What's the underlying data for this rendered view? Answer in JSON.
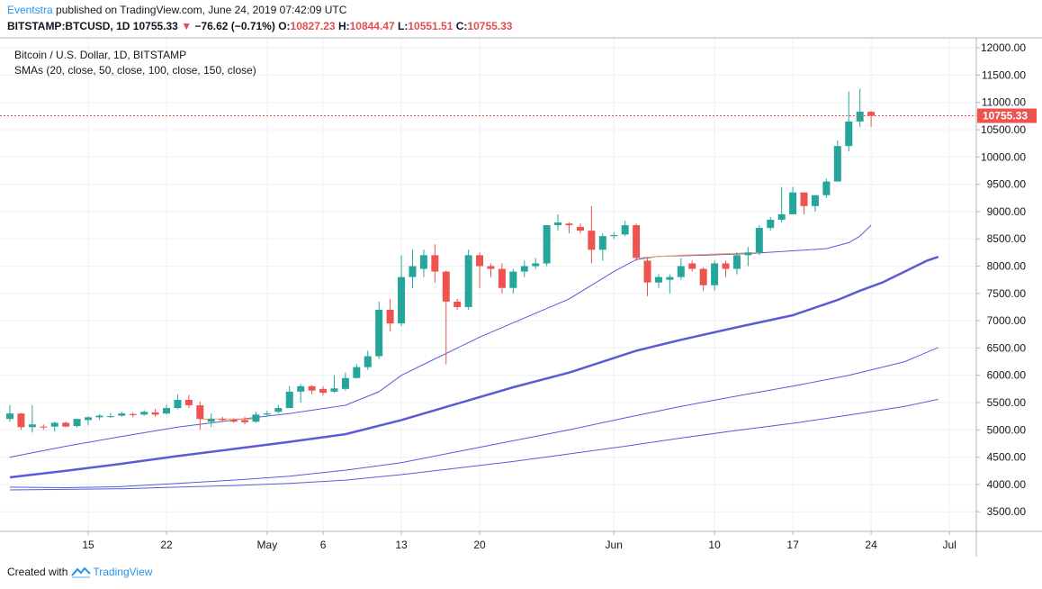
{
  "header": {
    "author": "Eventstra",
    "published_text": "published on TradingView.com, June 24, 2019 07:42:09 UTC",
    "symbol": "BITSTAMP:BTCUSD, 1D",
    "last": "10755.33",
    "change_arrow": "▼",
    "change": "−76.62 (−0.71%)",
    "o_label": "O:",
    "o_value": "10827.23",
    "h_label": "H:",
    "h_value": "10844.47",
    "l_label": "L:",
    "l_value": "10551.51",
    "c_label": "C:",
    "c_value": "10755.33"
  },
  "legend": {
    "title": "Bitcoin / U.S. Dollar, 1D, BITSTAMP",
    "indicators": "SMAs (20, close, 50, close, 100, close, 150, close)"
  },
  "footer": {
    "created_with": "Created with",
    "brand": "TradingView"
  },
  "colors": {
    "up": "#26a69a",
    "down": "#ef5350",
    "sma": "#5b5bd6",
    "sma_cross": "#f5a05a",
    "last_price_bg": "#ef5350",
    "grid": "#eef0f3"
  },
  "chart_data": {
    "type": "candlestick",
    "title": "Bitcoin / U.S. Dollar, 1D, BITSTAMP",
    "ylim": [
      3000,
      12100
    ],
    "y_ticks": [
      "12000.00",
      "11500.00",
      "11000.00",
      "10500.00",
      "10000.00",
      "9500.00",
      "9000.00",
      "8500.00",
      "8000.00",
      "7500.00",
      "7000.00",
      "6500.00",
      "6000.00",
      "5500.00",
      "5000.00",
      "4500.00",
      "4000.00",
      "3500.00"
    ],
    "x_tick_labels": [
      "15",
      "22",
      "May",
      "6",
      "13",
      "20",
      "Jun",
      "10",
      "17",
      "24",
      "Jul"
    ],
    "last_price_label": "10755.33",
    "grid": true,
    "candles": [
      {
        "date": "2019-04-08",
        "o": 5200,
        "h": 5450,
        "l": 5150,
        "c": 5300
      },
      {
        "date": "2019-04-09",
        "o": 5300,
        "h": 5310,
        "l": 5000,
        "c": 5050
      },
      {
        "date": "2019-04-10",
        "o": 5050,
        "h": 5450,
        "l": 4950,
        "c": 5100
      },
      {
        "date": "2019-04-11",
        "o": 5060,
        "h": 5100,
        "l": 5000,
        "c": 5050
      },
      {
        "date": "2019-04-12",
        "o": 5060,
        "h": 5150,
        "l": 4970,
        "c": 5130
      },
      {
        "date": "2019-04-13",
        "o": 5130,
        "h": 5150,
        "l": 5050,
        "c": 5060
      },
      {
        "date": "2019-04-14",
        "o": 5070,
        "h": 5200,
        "l": 5040,
        "c": 5200
      },
      {
        "date": "2019-04-15",
        "o": 5180,
        "h": 5250,
        "l": 5080,
        "c": 5230
      },
      {
        "date": "2019-04-16",
        "o": 5230,
        "h": 5290,
        "l": 5180,
        "c": 5260
      },
      {
        "date": "2019-04-17",
        "o": 5240,
        "h": 5310,
        "l": 5220,
        "c": 5250
      },
      {
        "date": "2019-04-18",
        "o": 5260,
        "h": 5330,
        "l": 5240,
        "c": 5300
      },
      {
        "date": "2019-04-19",
        "o": 5290,
        "h": 5320,
        "l": 5230,
        "c": 5270
      },
      {
        "date": "2019-04-20",
        "o": 5280,
        "h": 5360,
        "l": 5260,
        "c": 5330
      },
      {
        "date": "2019-04-21",
        "o": 5320,
        "h": 5380,
        "l": 5240,
        "c": 5280
      },
      {
        "date": "2019-04-22",
        "o": 5300,
        "h": 5460,
        "l": 5280,
        "c": 5400
      },
      {
        "date": "2019-04-23",
        "o": 5400,
        "h": 5650,
        "l": 5380,
        "c": 5550
      },
      {
        "date": "2019-04-24",
        "o": 5550,
        "h": 5640,
        "l": 5400,
        "c": 5450
      },
      {
        "date": "2019-04-25",
        "o": 5450,
        "h": 5520,
        "l": 5000,
        "c": 5200
      },
      {
        "date": "2019-04-26",
        "o": 5150,
        "h": 5300,
        "l": 5050,
        "c": 5200
      },
      {
        "date": "2019-04-27",
        "o": 5200,
        "h": 5240,
        "l": 5150,
        "c": 5180
      },
      {
        "date": "2019-04-28",
        "o": 5180,
        "h": 5210,
        "l": 5130,
        "c": 5150
      },
      {
        "date": "2019-04-29",
        "o": 5180,
        "h": 5240,
        "l": 5100,
        "c": 5140
      },
      {
        "date": "2019-04-30",
        "o": 5150,
        "h": 5330,
        "l": 5130,
        "c": 5280
      },
      {
        "date": "2019-05-01",
        "o": 5280,
        "h": 5350,
        "l": 5250,
        "c": 5300
      },
      {
        "date": "2019-05-02",
        "o": 5330,
        "h": 5460,
        "l": 5300,
        "c": 5400
      },
      {
        "date": "2019-05-03",
        "o": 5400,
        "h": 5800,
        "l": 5400,
        "c": 5700
      },
      {
        "date": "2019-05-04",
        "o": 5700,
        "h": 5840,
        "l": 5500,
        "c": 5800
      },
      {
        "date": "2019-05-05",
        "o": 5800,
        "h": 5820,
        "l": 5650,
        "c": 5720
      },
      {
        "date": "2019-05-06",
        "o": 5750,
        "h": 5800,
        "l": 5630,
        "c": 5680
      },
      {
        "date": "2019-05-07",
        "o": 5700,
        "h": 6000,
        "l": 5680,
        "c": 5760
      },
      {
        "date": "2019-05-08",
        "o": 5750,
        "h": 6050,
        "l": 5720,
        "c": 5950
      },
      {
        "date": "2019-05-09",
        "o": 5950,
        "h": 6200,
        "l": 5940,
        "c": 6150
      },
      {
        "date": "2019-05-10",
        "o": 6150,
        "h": 6450,
        "l": 6100,
        "c": 6350
      },
      {
        "date": "2019-05-11",
        "o": 6350,
        "h": 7350,
        "l": 6300,
        "c": 7200
      },
      {
        "date": "2019-05-12",
        "o": 7200,
        "h": 7400,
        "l": 6800,
        "c": 6950
      },
      {
        "date": "2019-05-13",
        "o": 6950,
        "h": 8200,
        "l": 6900,
        "c": 7800
      },
      {
        "date": "2019-05-14",
        "o": 7800,
        "h": 8300,
        "l": 7600,
        "c": 8000
      },
      {
        "date": "2019-05-15",
        "o": 7950,
        "h": 8300,
        "l": 7800,
        "c": 8200
      },
      {
        "date": "2019-05-16",
        "o": 8200,
        "h": 8400,
        "l": 7700,
        "c": 7900
      },
      {
        "date": "2019-05-17",
        "o": 7900,
        "h": 7920,
        "l": 6200,
        "c": 7350
      },
      {
        "date": "2019-05-18",
        "o": 7350,
        "h": 7400,
        "l": 7200,
        "c": 7250
      },
      {
        "date": "2019-05-19",
        "o": 7250,
        "h": 8300,
        "l": 7200,
        "c": 8200
      },
      {
        "date": "2019-05-20",
        "o": 8200,
        "h": 8250,
        "l": 7600,
        "c": 8000
      },
      {
        "date": "2019-05-21",
        "o": 8000,
        "h": 8050,
        "l": 7800,
        "c": 7950
      },
      {
        "date": "2019-05-22",
        "o": 7950,
        "h": 8050,
        "l": 7500,
        "c": 7600
      },
      {
        "date": "2019-05-23",
        "o": 7600,
        "h": 7950,
        "l": 7500,
        "c": 7900
      },
      {
        "date": "2019-05-24",
        "o": 7900,
        "h": 8100,
        "l": 7800,
        "c": 8000
      },
      {
        "date": "2019-05-25",
        "o": 8000,
        "h": 8150,
        "l": 7950,
        "c": 8050
      },
      {
        "date": "2019-05-26",
        "o": 8050,
        "h": 8750,
        "l": 8000,
        "c": 8750
      },
      {
        "date": "2019-05-27",
        "o": 8750,
        "h": 8950,
        "l": 8650,
        "c": 8800
      },
      {
        "date": "2019-05-28",
        "o": 8780,
        "h": 8800,
        "l": 8600,
        "c": 8750
      },
      {
        "date": "2019-05-29",
        "o": 8720,
        "h": 8780,
        "l": 8600,
        "c": 8650
      },
      {
        "date": "2019-05-30",
        "o": 8650,
        "h": 9100,
        "l": 8050,
        "c": 8300
      },
      {
        "date": "2019-05-31",
        "o": 8300,
        "h": 8600,
        "l": 8100,
        "c": 8550
      },
      {
        "date": "2019-06-01",
        "o": 8550,
        "h": 8620,
        "l": 8500,
        "c": 8570
      },
      {
        "date": "2019-06-02",
        "o": 8580,
        "h": 8830,
        "l": 8550,
        "c": 8750
      },
      {
        "date": "2019-06-03",
        "o": 8750,
        "h": 8780,
        "l": 8100,
        "c": 8150
      },
      {
        "date": "2019-06-04",
        "o": 8100,
        "h": 8150,
        "l": 7450,
        "c": 7700
      },
      {
        "date": "2019-06-05",
        "o": 7700,
        "h": 7850,
        "l": 7600,
        "c": 7800
      },
      {
        "date": "2019-06-06",
        "o": 7750,
        "h": 7850,
        "l": 7500,
        "c": 7800
      },
      {
        "date": "2019-06-07",
        "o": 7800,
        "h": 8150,
        "l": 7750,
        "c": 8000
      },
      {
        "date": "2019-06-08",
        "o": 8050,
        "h": 8100,
        "l": 7900,
        "c": 7950
      },
      {
        "date": "2019-06-09",
        "o": 7950,
        "h": 7980,
        "l": 7550,
        "c": 7650
      },
      {
        "date": "2019-06-10",
        "o": 7650,
        "h": 8100,
        "l": 7550,
        "c": 8050
      },
      {
        "date": "2019-06-11",
        "o": 8050,
        "h": 8100,
        "l": 7800,
        "c": 7950
      },
      {
        "date": "2019-06-12",
        "o": 7950,
        "h": 8250,
        "l": 7850,
        "c": 8200
      },
      {
        "date": "2019-06-13",
        "o": 8200,
        "h": 8350,
        "l": 8000,
        "c": 8250
      },
      {
        "date": "2019-06-14",
        "o": 8250,
        "h": 8750,
        "l": 8200,
        "c": 8700
      },
      {
        "date": "2019-06-15",
        "o": 8700,
        "h": 8900,
        "l": 8650,
        "c": 8850
      },
      {
        "date": "2019-06-16",
        "o": 8850,
        "h": 9450,
        "l": 8800,
        "c": 8950
      },
      {
        "date": "2019-06-17",
        "o": 8950,
        "h": 9450,
        "l": 8950,
        "c": 9350
      },
      {
        "date": "2019-06-18",
        "o": 9350,
        "h": 9350,
        "l": 8950,
        "c": 9100
      },
      {
        "date": "2019-06-19",
        "o": 9100,
        "h": 9300,
        "l": 9000,
        "c": 9300
      },
      {
        "date": "2019-06-20",
        "o": 9300,
        "h": 9600,
        "l": 9250,
        "c": 9550
      },
      {
        "date": "2019-06-21",
        "o": 9550,
        "h": 10300,
        "l": 9550,
        "c": 10200
      },
      {
        "date": "2019-06-22",
        "o": 10200,
        "h": 11200,
        "l": 10100,
        "c": 10650
      },
      {
        "date": "2019-06-23",
        "o": 10650,
        "h": 11250,
        "l": 10550,
        "c": 10830
      },
      {
        "date": "2019-06-24",
        "o": 10827.23,
        "h": 10844.47,
        "l": 10551.51,
        "c": 10755.33
      }
    ],
    "sma": [
      {
        "period": 20,
        "points": [
          [
            0,
            4500
          ],
          [
            5,
            4700
          ],
          [
            10,
            4880
          ],
          [
            15,
            5050
          ],
          [
            20,
            5180
          ],
          [
            25,
            5300
          ],
          [
            30,
            5450
          ],
          [
            33,
            5700
          ],
          [
            35,
            6000
          ],
          [
            38,
            6300
          ],
          [
            42,
            6700
          ],
          [
            46,
            7050
          ],
          [
            50,
            7400
          ],
          [
            52,
            7650
          ],
          [
            54,
            7900
          ],
          [
            56,
            8120
          ],
          [
            58,
            8180
          ],
          [
            62,
            8200
          ],
          [
            66,
            8230
          ],
          [
            70,
            8280
          ],
          [
            73,
            8320
          ],
          [
            75,
            8430
          ],
          [
            76,
            8550
          ],
          [
            77,
            8750
          ]
        ]
      },
      {
        "period": 50,
        "points": [
          [
            0,
            4130
          ],
          [
            5,
            4250
          ],
          [
            10,
            4380
          ],
          [
            15,
            4520
          ],
          [
            20,
            4650
          ],
          [
            25,
            4780
          ],
          [
            30,
            4920
          ],
          [
            35,
            5180
          ],
          [
            40,
            5480
          ],
          [
            45,
            5780
          ],
          [
            50,
            6050
          ],
          [
            53,
            6250
          ],
          [
            56,
            6450
          ],
          [
            60,
            6650
          ],
          [
            65,
            6880
          ],
          [
            70,
            7100
          ],
          [
            74,
            7380
          ],
          [
            76,
            7550
          ],
          [
            78,
            7700
          ],
          [
            79,
            7800
          ],
          [
            80,
            7900
          ],
          [
            81,
            8000
          ],
          [
            82,
            8100
          ],
          [
            83,
            8170
          ]
        ]
      },
      {
        "period": 100,
        "points": [
          [
            0,
            3950
          ],
          [
            5,
            3940
          ],
          [
            10,
            3960
          ],
          [
            15,
            4020
          ],
          [
            20,
            4080
          ],
          [
            25,
            4150
          ],
          [
            30,
            4260
          ],
          [
            35,
            4400
          ],
          [
            40,
            4600
          ],
          [
            45,
            4800
          ],
          [
            50,
            5000
          ],
          [
            55,
            5220
          ],
          [
            60,
            5430
          ],
          [
            65,
            5620
          ],
          [
            70,
            5800
          ],
          [
            75,
            6000
          ],
          [
            80,
            6250
          ],
          [
            83,
            6510
          ]
        ]
      },
      {
        "period": 150,
        "points": [
          [
            0,
            3900
          ],
          [
            5,
            3910
          ],
          [
            10,
            3920
          ],
          [
            15,
            3950
          ],
          [
            20,
            3980
          ],
          [
            25,
            4020
          ],
          [
            30,
            4080
          ],
          [
            35,
            4180
          ],
          [
            40,
            4300
          ],
          [
            45,
            4420
          ],
          [
            50,
            4560
          ],
          [
            55,
            4700
          ],
          [
            60,
            4850
          ],
          [
            65,
            4990
          ],
          [
            70,
            5120
          ],
          [
            75,
            5270
          ],
          [
            80,
            5430
          ],
          [
            83,
            5560
          ]
        ]
      }
    ]
  }
}
